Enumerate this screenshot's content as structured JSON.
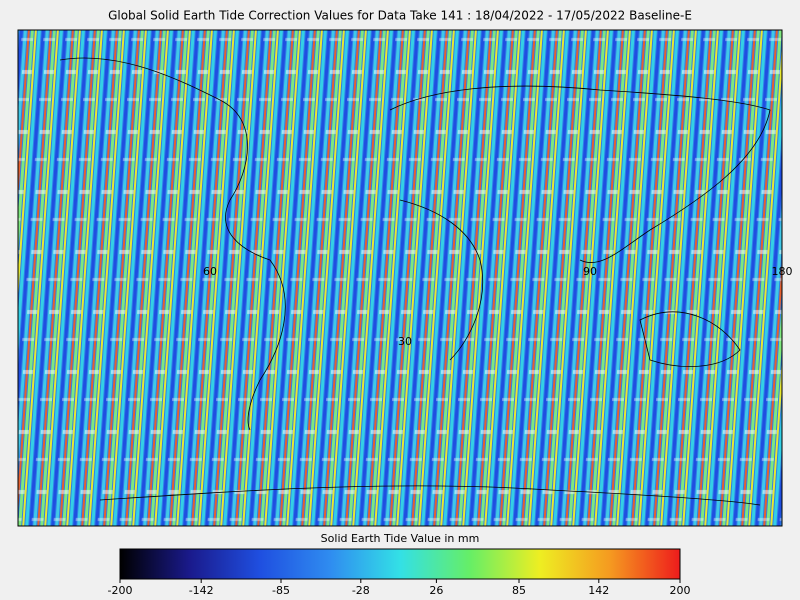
{
  "title": "Global Solid Earth Tide Correction Values for Data Take 141 : 18/04/2022 - 17/05/2022 Baseline-E",
  "map_labels": [
    "60",
    "30",
    "90",
    "180"
  ],
  "colorbar": {
    "label": "Solid Earth Tide Value in mm",
    "lim": [
      -200,
      200
    ],
    "ticks": [
      -200,
      -142,
      -85,
      -28,
      26,
      85,
      142,
      200
    ],
    "colors": [
      "#000000",
      "#1a1a8c",
      "#1f4fe0",
      "#2f8cf0",
      "#33e0e6",
      "#66ee66",
      "#eeee22",
      "#f59a20",
      "#ee1c1c"
    ]
  }
}
